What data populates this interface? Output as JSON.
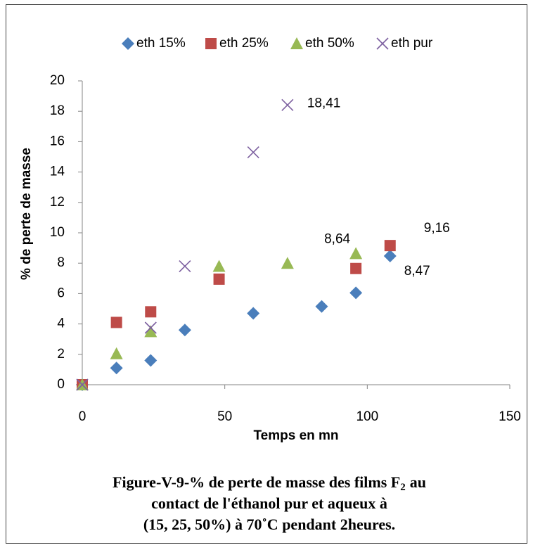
{
  "chart_data": {
    "type": "scatter",
    "x_label": "Temps en mn",
    "y_label": "% de perte de masse",
    "xlim": [
      0,
      150
    ],
    "xticks": [
      0,
      50,
      100,
      150
    ],
    "ylim": [
      0,
      20
    ],
    "yticks": [
      0,
      2,
      4,
      6,
      8,
      10,
      12,
      14,
      16,
      18,
      20
    ],
    "grid": false,
    "legend": "top",
    "series": [
      {
        "name": "eth 15%",
        "color": "#4a7ebb",
        "marker": "diamond",
        "x": [
          0,
          12,
          24,
          36,
          60,
          84,
          96,
          108
        ],
        "values": [
          0,
          1.1,
          1.6,
          3.6,
          4.7,
          5.15,
          6.05,
          8.47
        ],
        "value_labels": [
          null,
          null,
          null,
          null,
          null,
          null,
          null,
          "8,47"
        ]
      },
      {
        "name": "eth 25%",
        "color": "#be4b48",
        "marker": "square",
        "x": [
          0,
          12,
          24,
          48,
          96,
          108
        ],
        "values": [
          0,
          4.1,
          4.8,
          6.95,
          7.65,
          9.16
        ],
        "value_labels": [
          null,
          null,
          null,
          null,
          null,
          "9,16"
        ]
      },
      {
        "name": "eth 50%",
        "color": "#98b954",
        "marker": "triangle",
        "x": [
          0,
          12,
          24,
          48,
          72,
          96
        ],
        "values": [
          0,
          2.05,
          3.5,
          7.8,
          8.0,
          8.64
        ],
        "value_labels": [
          null,
          null,
          null,
          null,
          null,
          "8,64"
        ]
      },
      {
        "name": "eth pur",
        "color": "#7d60a0",
        "marker": "cross",
        "x": [
          0,
          24,
          36,
          60,
          72
        ],
        "values": [
          0,
          3.75,
          7.8,
          15.3,
          18.41
        ],
        "value_labels": [
          null,
          null,
          null,
          null,
          "18,41"
        ]
      }
    ]
  },
  "caption": {
    "line1_main": "Figure-V-9-% de perte de masse des films F",
    "line1_sub": "2",
    "line1_end": "au",
    "line2": "contact de l'éthanol pur et aqueux à",
    "line3": "(15, 25, 50%) à 70˚C pendant 2heures."
  }
}
